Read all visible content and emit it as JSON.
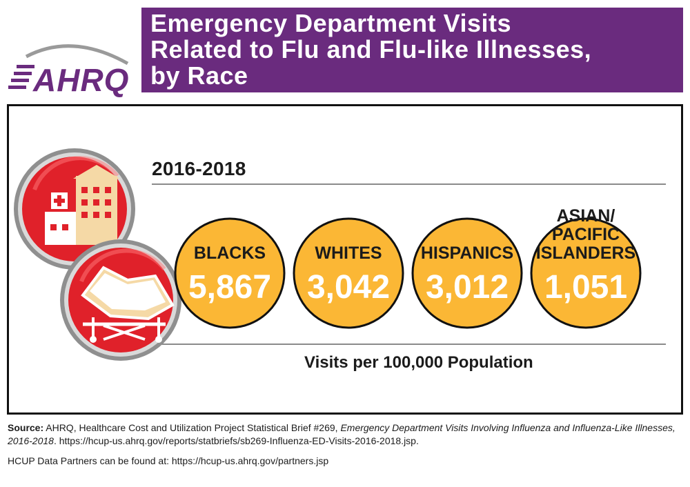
{
  "logo": {
    "text": "AHRQ"
  },
  "header": {
    "title_lines": [
      "Emergency Department Visits",
      "Related to Flu and Flu-like Illnesses,",
      "by Race"
    ]
  },
  "period": "2016-2018",
  "icons": [
    "hospital-building-icon",
    "hospital-bed-icon"
  ],
  "chart_data": {
    "type": "bubble-values",
    "title": "Emergency Department Visits Related to Flu and Flu-like Illnesses, by Race",
    "subtitle": "2016-2018",
    "unit": "Visits per 100,000 Population",
    "categories": [
      {
        "label_lines": [
          "BLACKS"
        ],
        "value": 5867,
        "display": "5,867"
      },
      {
        "label_lines": [
          "WHITES"
        ],
        "value": 3042,
        "display": "3,042"
      },
      {
        "label_lines": [
          "HISPANICS"
        ],
        "value": 3012,
        "display": "3,012"
      },
      {
        "label_lines": [
          "ASIAN/",
          "PACIFIC",
          "ISLANDERS"
        ],
        "value": 1051,
        "display": "1,051"
      }
    ]
  },
  "footer": {
    "source_label": "Source:",
    "source_text": " AHRQ, Healthcare Cost and Utilization Project Statistical Brief #269, ",
    "source_title": "Emergency Department Visits Involving Influenza and Influenza-Like Illnesses, 2016-2018",
    "source_url": ". https://hcup-us.ahrq.gov/reports/statbriefs/sb269-Influenza-ED-Visits-2016-2018.jsp.",
    "partners": "HCUP Data Partners can be found at: https://hcup-us.ahrq.gov/partners.jsp"
  },
  "colors": {
    "purple": "#6a2b7e",
    "circle_fill": "#fbb735",
    "circle_stroke": "#111111",
    "label_color": "#1b1b1b",
    "value_color": "#ffffff",
    "icon_red": "#e0212a"
  }
}
